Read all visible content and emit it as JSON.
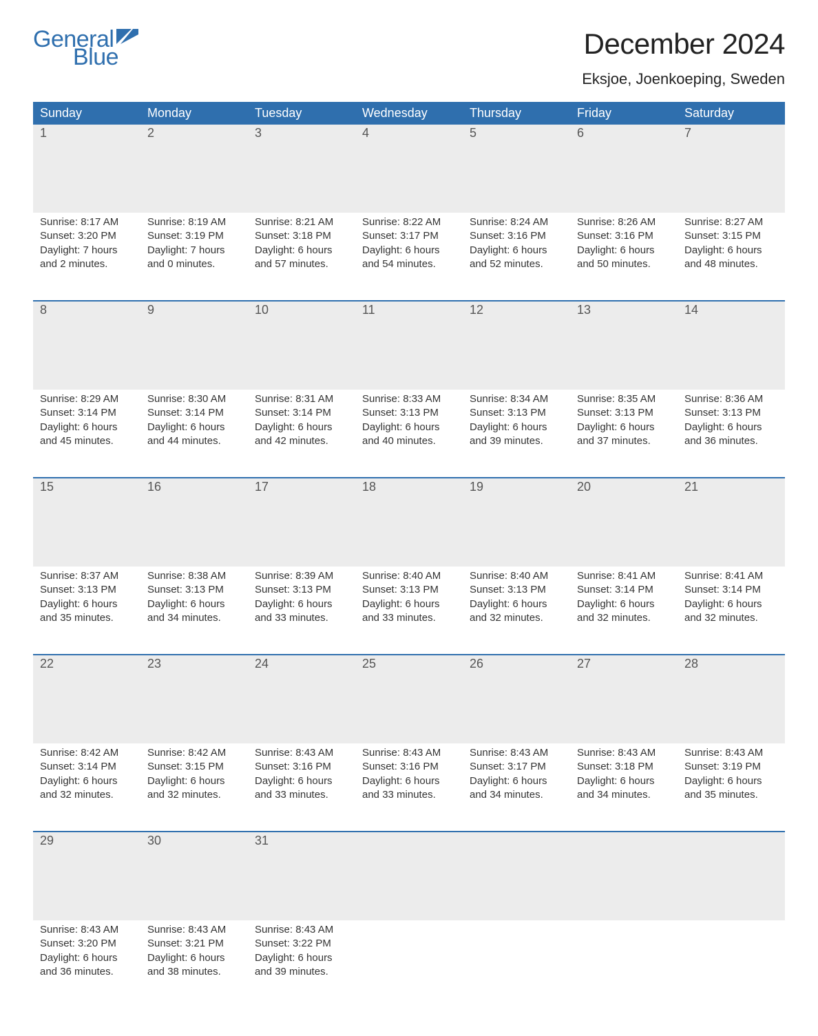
{
  "brand": {
    "word1": "General",
    "word2": "Blue",
    "color": "#2f6fae"
  },
  "title": "December 2024",
  "location": "Eksjoe, Joenkoeping, Sweden",
  "colors": {
    "header_bg": "#2f6fae",
    "header_text": "#ffffff",
    "daynum_bg": "#ececec",
    "body_text": "#333333",
    "page_bg": "#ffffff",
    "rule": "#2f6fae"
  },
  "weekdays": [
    "Sunday",
    "Monday",
    "Tuesday",
    "Wednesday",
    "Thursday",
    "Friday",
    "Saturday"
  ],
  "weeks": [
    [
      {
        "n": "1",
        "sunrise": "Sunrise: 8:17 AM",
        "sunset": "Sunset: 3:20 PM",
        "dl1": "Daylight: 7 hours",
        "dl2": "and 2 minutes."
      },
      {
        "n": "2",
        "sunrise": "Sunrise: 8:19 AM",
        "sunset": "Sunset: 3:19 PM",
        "dl1": "Daylight: 7 hours",
        "dl2": "and 0 minutes."
      },
      {
        "n": "3",
        "sunrise": "Sunrise: 8:21 AM",
        "sunset": "Sunset: 3:18 PM",
        "dl1": "Daylight: 6 hours",
        "dl2": "and 57 minutes."
      },
      {
        "n": "4",
        "sunrise": "Sunrise: 8:22 AM",
        "sunset": "Sunset: 3:17 PM",
        "dl1": "Daylight: 6 hours",
        "dl2": "and 54 minutes."
      },
      {
        "n": "5",
        "sunrise": "Sunrise: 8:24 AM",
        "sunset": "Sunset: 3:16 PM",
        "dl1": "Daylight: 6 hours",
        "dl2": "and 52 minutes."
      },
      {
        "n": "6",
        "sunrise": "Sunrise: 8:26 AM",
        "sunset": "Sunset: 3:16 PM",
        "dl1": "Daylight: 6 hours",
        "dl2": "and 50 minutes."
      },
      {
        "n": "7",
        "sunrise": "Sunrise: 8:27 AM",
        "sunset": "Sunset: 3:15 PM",
        "dl1": "Daylight: 6 hours",
        "dl2": "and 48 minutes."
      }
    ],
    [
      {
        "n": "8",
        "sunrise": "Sunrise: 8:29 AM",
        "sunset": "Sunset: 3:14 PM",
        "dl1": "Daylight: 6 hours",
        "dl2": "and 45 minutes."
      },
      {
        "n": "9",
        "sunrise": "Sunrise: 8:30 AM",
        "sunset": "Sunset: 3:14 PM",
        "dl1": "Daylight: 6 hours",
        "dl2": "and 44 minutes."
      },
      {
        "n": "10",
        "sunrise": "Sunrise: 8:31 AM",
        "sunset": "Sunset: 3:14 PM",
        "dl1": "Daylight: 6 hours",
        "dl2": "and 42 minutes."
      },
      {
        "n": "11",
        "sunrise": "Sunrise: 8:33 AM",
        "sunset": "Sunset: 3:13 PM",
        "dl1": "Daylight: 6 hours",
        "dl2": "and 40 minutes."
      },
      {
        "n": "12",
        "sunrise": "Sunrise: 8:34 AM",
        "sunset": "Sunset: 3:13 PM",
        "dl1": "Daylight: 6 hours",
        "dl2": "and 39 minutes."
      },
      {
        "n": "13",
        "sunrise": "Sunrise: 8:35 AM",
        "sunset": "Sunset: 3:13 PM",
        "dl1": "Daylight: 6 hours",
        "dl2": "and 37 minutes."
      },
      {
        "n": "14",
        "sunrise": "Sunrise: 8:36 AM",
        "sunset": "Sunset: 3:13 PM",
        "dl1": "Daylight: 6 hours",
        "dl2": "and 36 minutes."
      }
    ],
    [
      {
        "n": "15",
        "sunrise": "Sunrise: 8:37 AM",
        "sunset": "Sunset: 3:13 PM",
        "dl1": "Daylight: 6 hours",
        "dl2": "and 35 minutes."
      },
      {
        "n": "16",
        "sunrise": "Sunrise: 8:38 AM",
        "sunset": "Sunset: 3:13 PM",
        "dl1": "Daylight: 6 hours",
        "dl2": "and 34 minutes."
      },
      {
        "n": "17",
        "sunrise": "Sunrise: 8:39 AM",
        "sunset": "Sunset: 3:13 PM",
        "dl1": "Daylight: 6 hours",
        "dl2": "and 33 minutes."
      },
      {
        "n": "18",
        "sunrise": "Sunrise: 8:40 AM",
        "sunset": "Sunset: 3:13 PM",
        "dl1": "Daylight: 6 hours",
        "dl2": "and 33 minutes."
      },
      {
        "n": "19",
        "sunrise": "Sunrise: 8:40 AM",
        "sunset": "Sunset: 3:13 PM",
        "dl1": "Daylight: 6 hours",
        "dl2": "and 32 minutes."
      },
      {
        "n": "20",
        "sunrise": "Sunrise: 8:41 AM",
        "sunset": "Sunset: 3:14 PM",
        "dl1": "Daylight: 6 hours",
        "dl2": "and 32 minutes."
      },
      {
        "n": "21",
        "sunrise": "Sunrise: 8:41 AM",
        "sunset": "Sunset: 3:14 PM",
        "dl1": "Daylight: 6 hours",
        "dl2": "and 32 minutes."
      }
    ],
    [
      {
        "n": "22",
        "sunrise": "Sunrise: 8:42 AM",
        "sunset": "Sunset: 3:14 PM",
        "dl1": "Daylight: 6 hours",
        "dl2": "and 32 minutes."
      },
      {
        "n": "23",
        "sunrise": "Sunrise: 8:42 AM",
        "sunset": "Sunset: 3:15 PM",
        "dl1": "Daylight: 6 hours",
        "dl2": "and 32 minutes."
      },
      {
        "n": "24",
        "sunrise": "Sunrise: 8:43 AM",
        "sunset": "Sunset: 3:16 PM",
        "dl1": "Daylight: 6 hours",
        "dl2": "and 33 minutes."
      },
      {
        "n": "25",
        "sunrise": "Sunrise: 8:43 AM",
        "sunset": "Sunset: 3:16 PM",
        "dl1": "Daylight: 6 hours",
        "dl2": "and 33 minutes."
      },
      {
        "n": "26",
        "sunrise": "Sunrise: 8:43 AM",
        "sunset": "Sunset: 3:17 PM",
        "dl1": "Daylight: 6 hours",
        "dl2": "and 34 minutes."
      },
      {
        "n": "27",
        "sunrise": "Sunrise: 8:43 AM",
        "sunset": "Sunset: 3:18 PM",
        "dl1": "Daylight: 6 hours",
        "dl2": "and 34 minutes."
      },
      {
        "n": "28",
        "sunrise": "Sunrise: 8:43 AM",
        "sunset": "Sunset: 3:19 PM",
        "dl1": "Daylight: 6 hours",
        "dl2": "and 35 minutes."
      }
    ],
    [
      {
        "n": "29",
        "sunrise": "Sunrise: 8:43 AM",
        "sunset": "Sunset: 3:20 PM",
        "dl1": "Daylight: 6 hours",
        "dl2": "and 36 minutes."
      },
      {
        "n": "30",
        "sunrise": "Sunrise: 8:43 AM",
        "sunset": "Sunset: 3:21 PM",
        "dl1": "Daylight: 6 hours",
        "dl2": "and 38 minutes."
      },
      {
        "n": "31",
        "sunrise": "Sunrise: 8:43 AM",
        "sunset": "Sunset: 3:22 PM",
        "dl1": "Daylight: 6 hours",
        "dl2": "and 39 minutes."
      },
      {
        "n": "",
        "sunrise": "",
        "sunset": "",
        "dl1": "",
        "dl2": ""
      },
      {
        "n": "",
        "sunrise": "",
        "sunset": "",
        "dl1": "",
        "dl2": ""
      },
      {
        "n": "",
        "sunrise": "",
        "sunset": "",
        "dl1": "",
        "dl2": ""
      },
      {
        "n": "",
        "sunrise": "",
        "sunset": "",
        "dl1": "",
        "dl2": ""
      }
    ]
  ]
}
